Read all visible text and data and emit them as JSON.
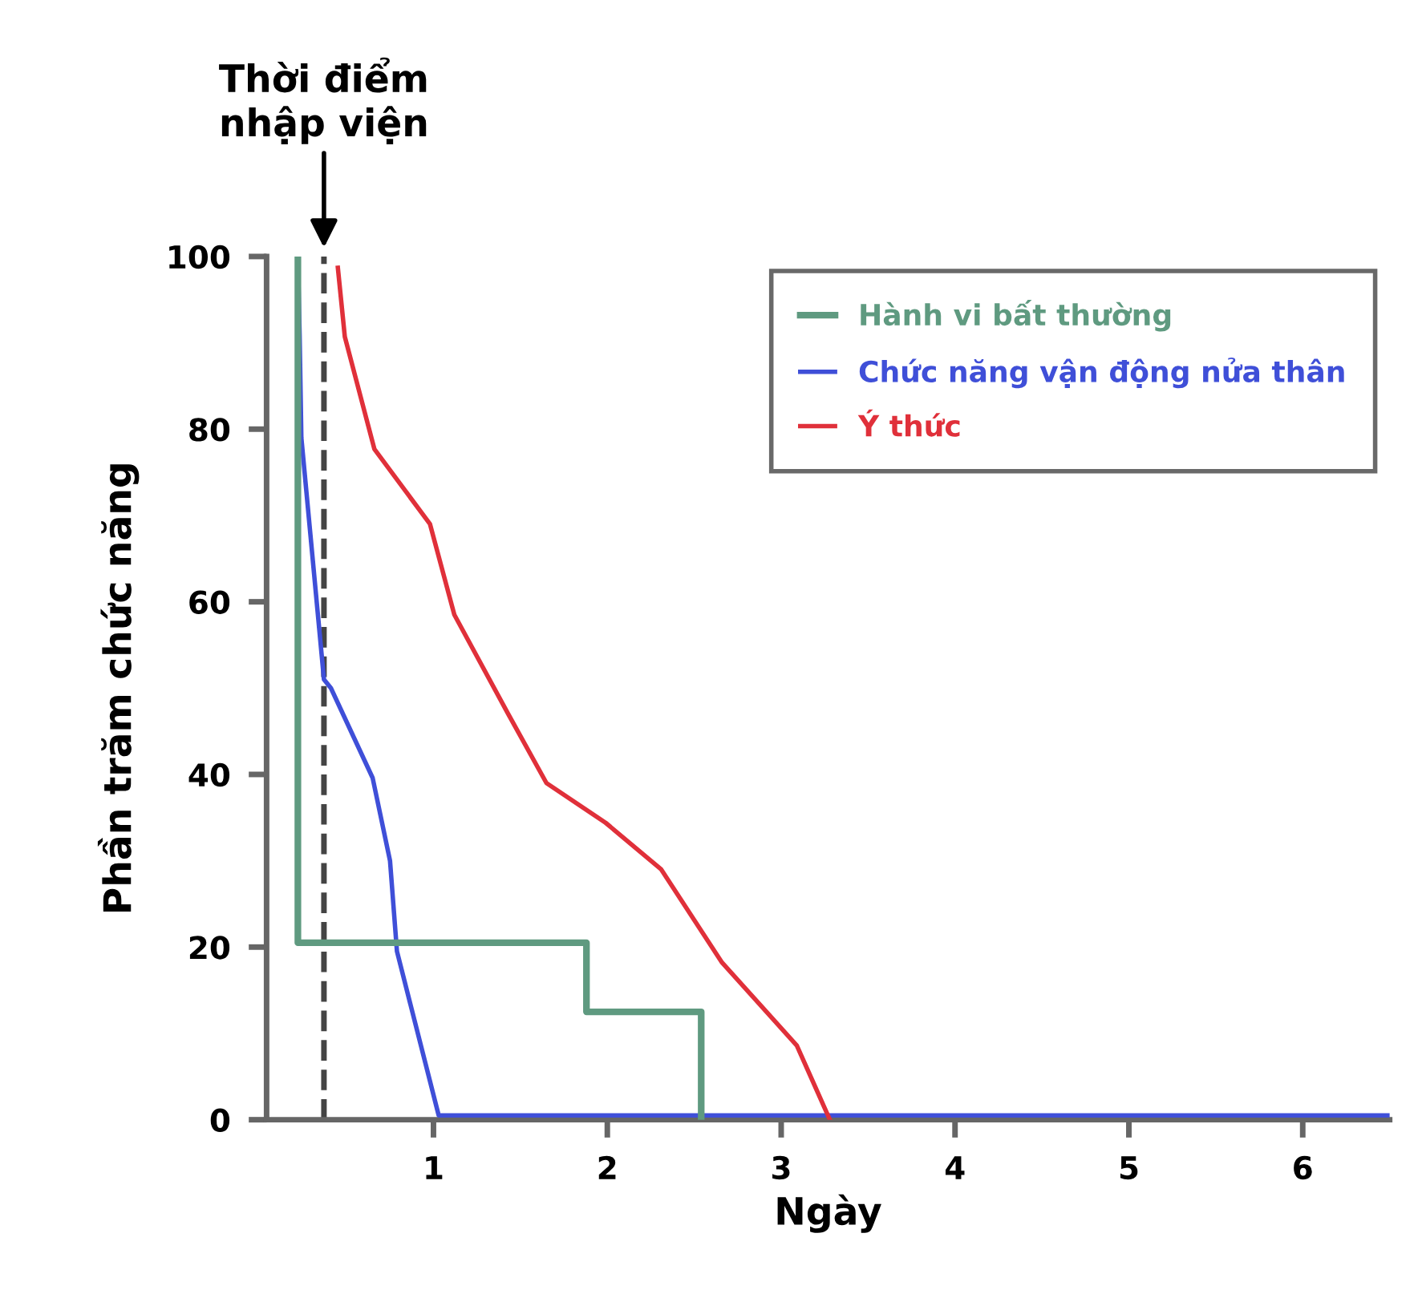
{
  "chart_data": {
    "type": "line",
    "xlabel": "Ngày",
    "ylabel": "Phần trăm chức năng",
    "xlim": [
      0.04,
      6.5
    ],
    "xticks": [
      1,
      2,
      3,
      4,
      5,
      6
    ],
    "ylim": [
      0,
      100
    ],
    "yticks": [
      0,
      20,
      40,
      60,
      80,
      100
    ],
    "grid": false,
    "legend": "top right",
    "line_style": "solid",
    "marker": "none",
    "ref_lines": [
      {
        "axis": "x",
        "value": 0.37,
        "label": "Thời điểm\nnhập viện",
        "color": "#444444",
        "line_style": "dashed"
      }
    ],
    "series": [
      {
        "name": "Hành vi bất thường",
        "color": "#5f9a80",
        "x": [
          0.22,
          0.22,
          1.88,
          1.88,
          2.54,
          2.54
        ],
        "values": [
          100,
          20.5,
          20.5,
          12.5,
          12.5,
          0
        ]
      },
      {
        "name": "Chức năng vận động nửa thân",
        "color": "#3f4fd8",
        "x": [
          0.22,
          0.23,
          0.24,
          0.37,
          0.41,
          0.65,
          0.75,
          0.79,
          1.03,
          6.5
        ],
        "values": [
          100,
          91,
          79,
          51,
          50,
          39.6,
          30,
          19.5,
          0.5,
          0.5
        ]
      },
      {
        "name": "Ý thức",
        "color": "#e0303a",
        "x": [
          0.45,
          0.49,
          0.66,
          0.98,
          1.12,
          1.43,
          1.65,
          1.99,
          2.31,
          2.66,
          3.09,
          3.28
        ],
        "values": [
          98.7,
          90.7,
          77.7,
          69,
          58.5,
          47,
          39,
          34.4,
          29,
          18.2,
          8.6,
          0
        ]
      }
    ]
  }
}
